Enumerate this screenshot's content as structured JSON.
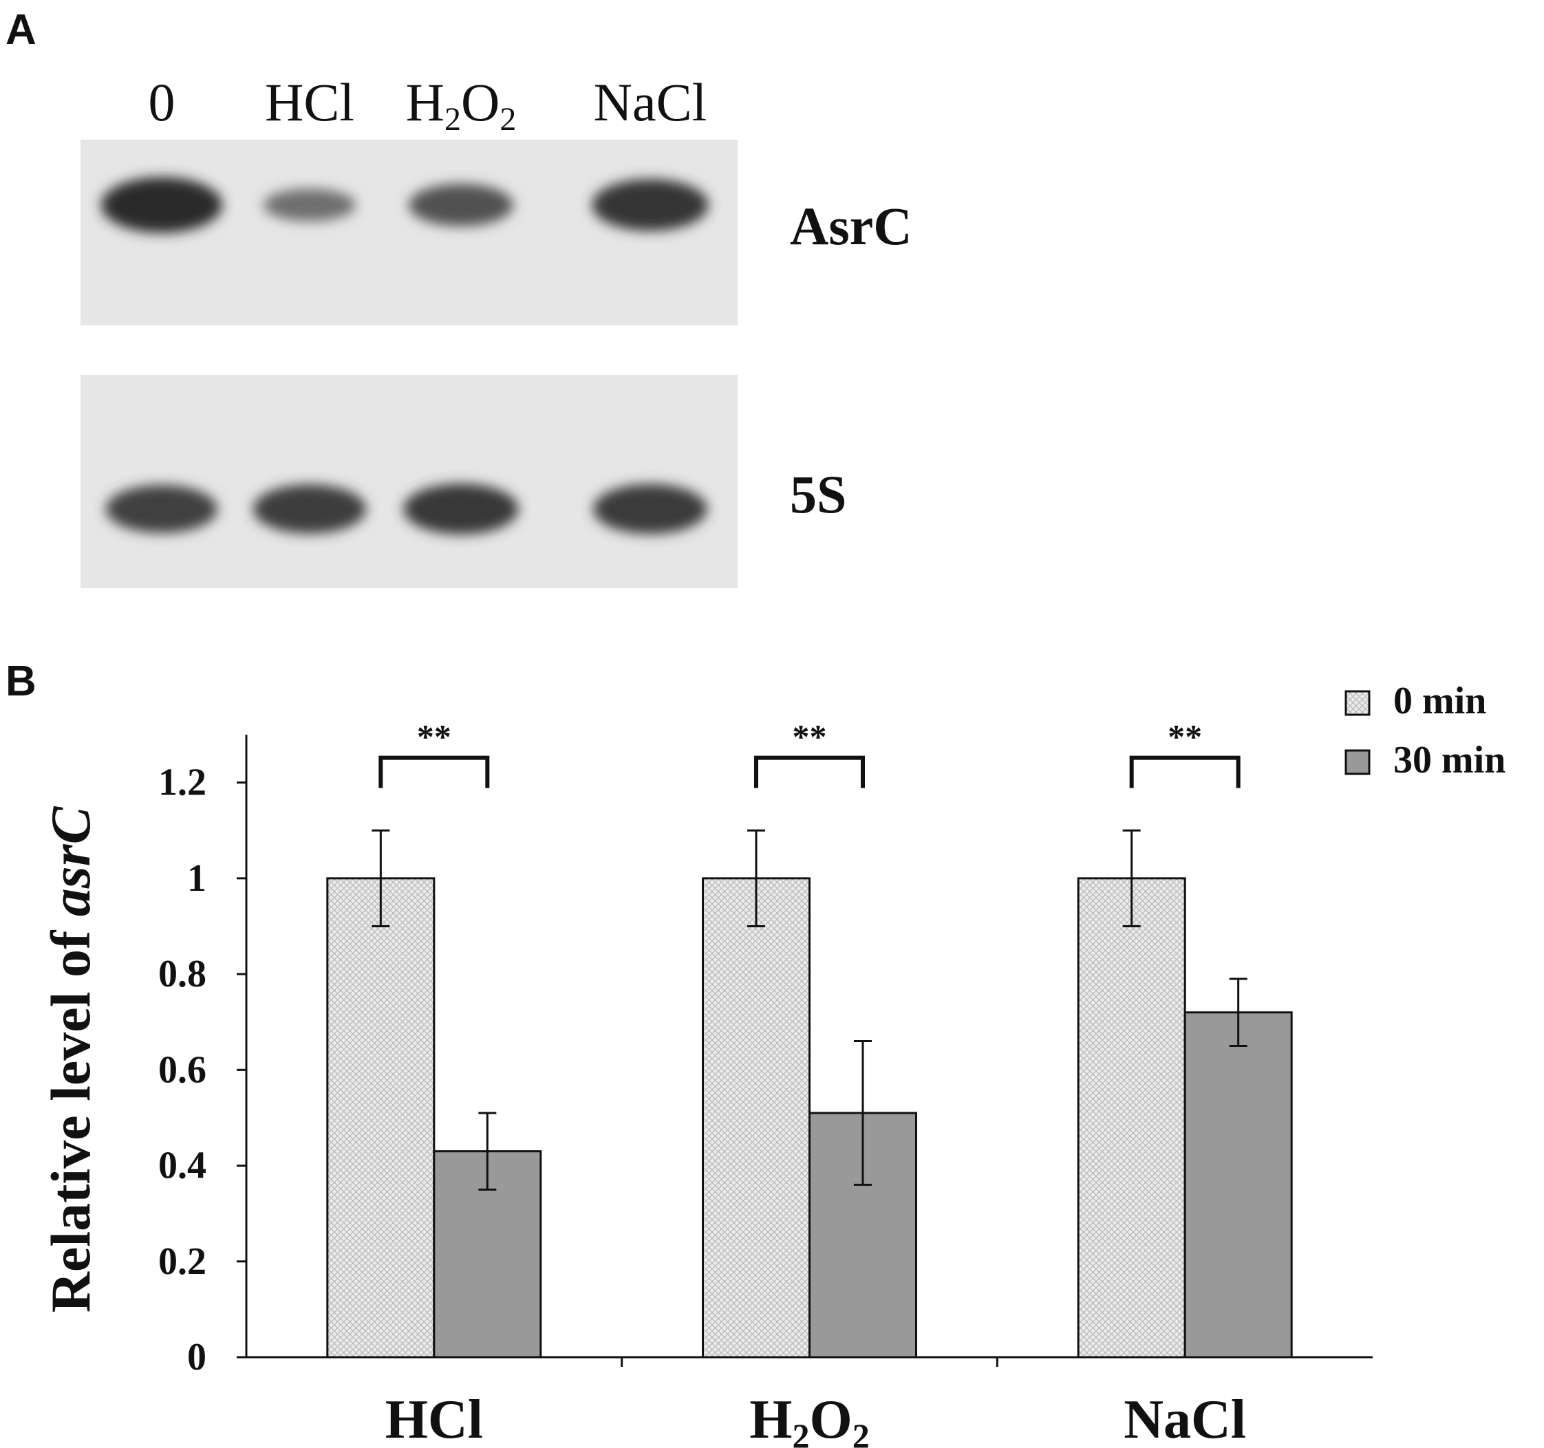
{
  "panel_a": {
    "letter": "A",
    "lanes": [
      {
        "main": "0",
        "sub": "",
        "tail": ""
      },
      {
        "main": "HCl",
        "sub": "",
        "tail": ""
      },
      {
        "main": "H",
        "sub": "2",
        "tail": "O",
        "sub2": "2"
      },
      {
        "main": "NaCl",
        "sub": "",
        "tail": ""
      }
    ],
    "blots": [
      {
        "label": "AsrC",
        "band_intensity": [
          0.95,
          0.35,
          0.6,
          0.85
        ]
      },
      {
        "label": "5S",
        "band_intensity": [
          0.75,
          0.78,
          0.82,
          0.8
        ]
      }
    ]
  },
  "panel_b": {
    "letter": "B"
  },
  "chart_data": {
    "type": "bar",
    "categories": [
      {
        "main": "HCl",
        "sub": "",
        "tail": ""
      },
      {
        "main": "H",
        "sub": "2",
        "tail": "O",
        "sub2": "2"
      },
      {
        "main": "NaCl",
        "sub": "",
        "tail": ""
      }
    ],
    "series": [
      {
        "name": "0 min",
        "values": [
          1.0,
          1.0,
          1.0
        ],
        "errors": [
          0.1,
          0.1,
          0.1
        ],
        "color": "#e6e6e6",
        "pattern": "crosshatch"
      },
      {
        "name": "30 min",
        "values": [
          0.43,
          0.51,
          0.72
        ],
        "errors": [
          0.08,
          0.15,
          0.07
        ],
        "color": "#999999",
        "pattern": "solid"
      }
    ],
    "significance": [
      "**",
      "**",
      "**"
    ],
    "ylabel_prefix": "Relative level of ",
    "ylabel_italic": "asrC",
    "ylim": [
      0,
      1.3
    ],
    "yticks": [
      "0",
      "0.2",
      "0.4",
      "0.6",
      "0.8",
      "1",
      "1.2"
    ],
    "legend_position": "top-right",
    "grid": false
  }
}
